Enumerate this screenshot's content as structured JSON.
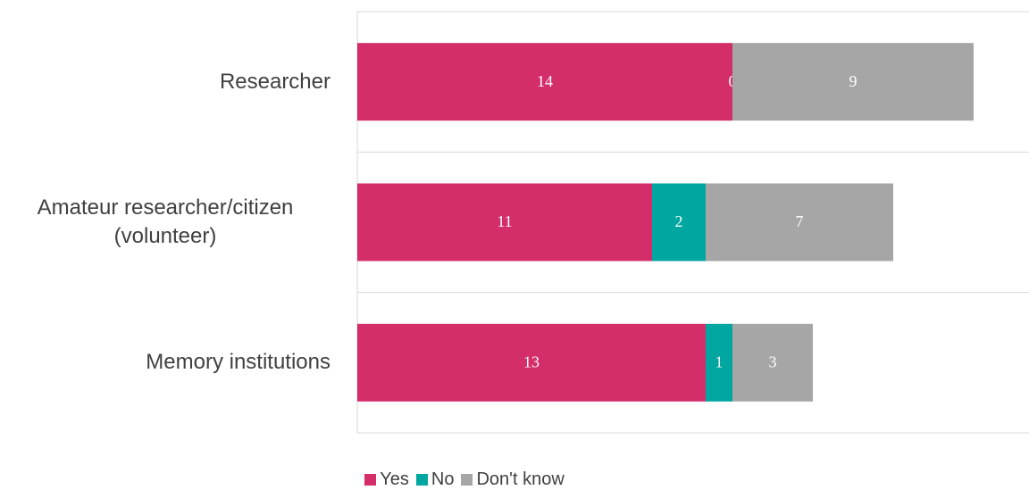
{
  "chart_data": {
    "type": "bar",
    "orientation": "horizontal",
    "stacked": true,
    "categories": [
      "Researcher",
      "Amateur researcher/citizen (volunteer)",
      "Memory institutions"
    ],
    "series": [
      {
        "name": "Yes",
        "color": "#d42e6a",
        "values": [
          14,
          11,
          13
        ]
      },
      {
        "name": "No",
        "color": "#00a6a0",
        "values": [
          0,
          2,
          1
        ]
      },
      {
        "name": "Don't know",
        "color": "#a6a6a6",
        "values": [
          9,
          7,
          3
        ]
      }
    ],
    "xlim": [
      0,
      25
    ],
    "legend": "bottom"
  }
}
